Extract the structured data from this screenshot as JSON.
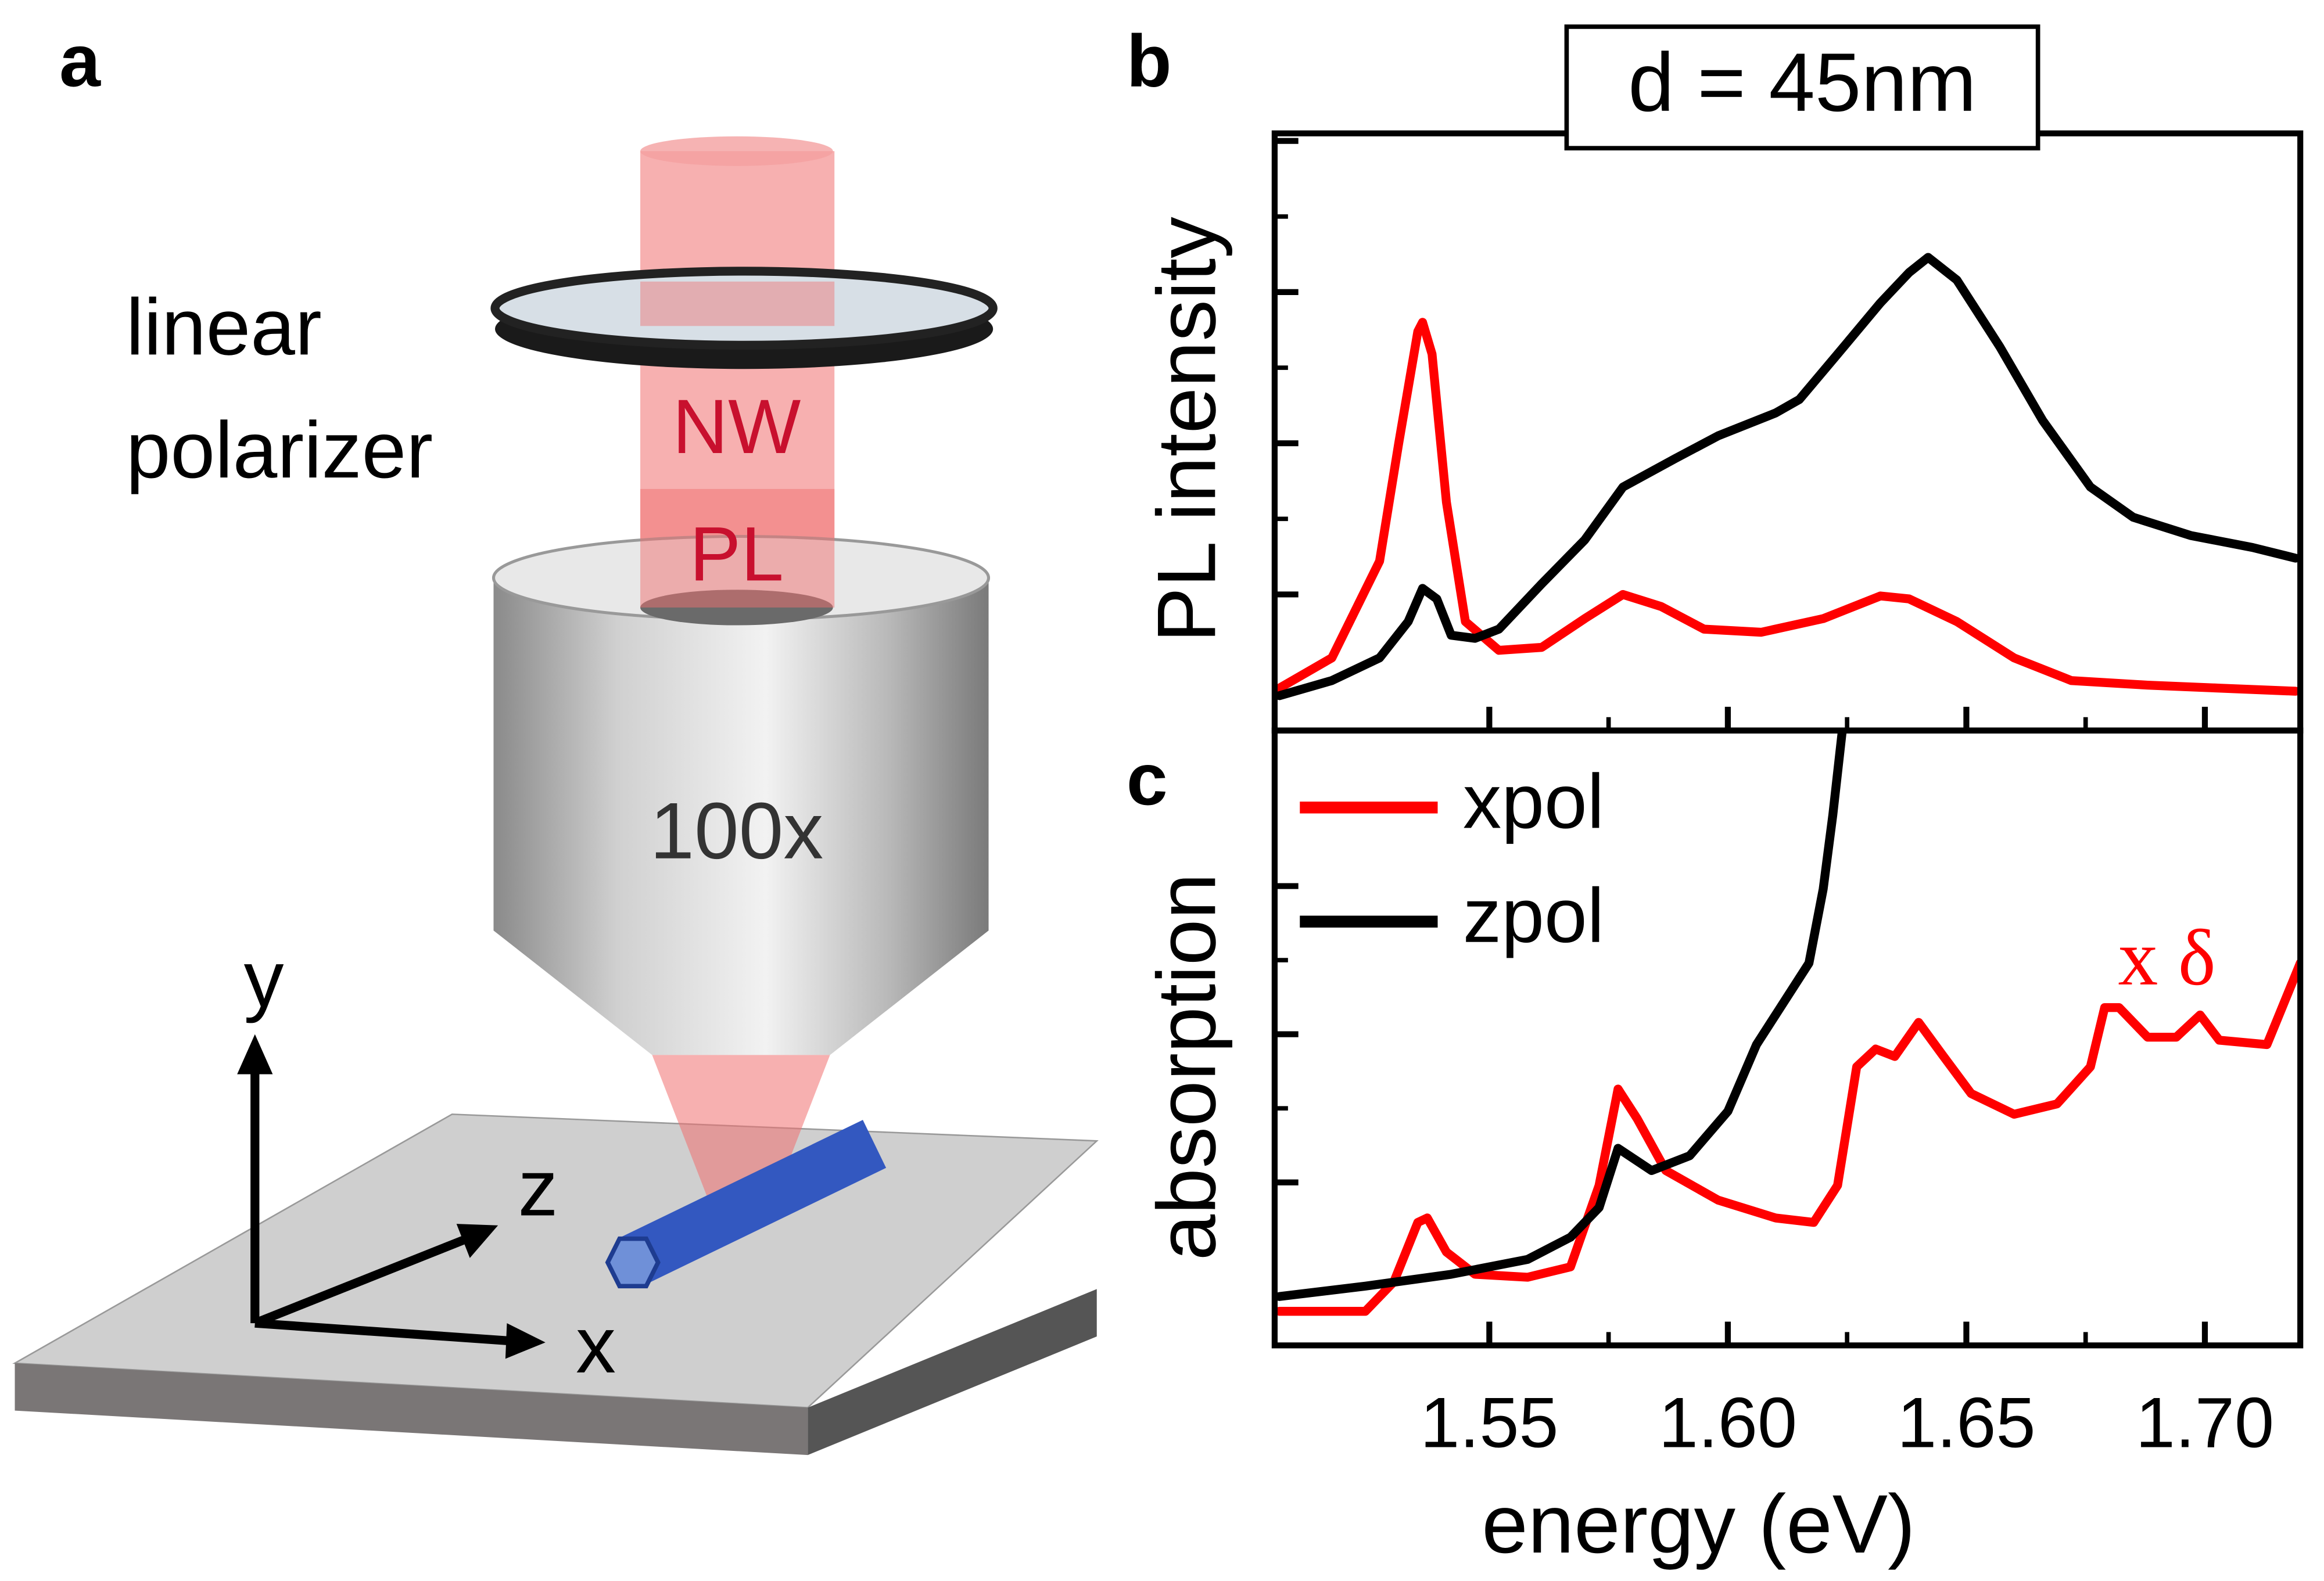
{
  "diagram": {
    "panel_label": "a",
    "polarizer_label": [
      "linear",
      "polarizer"
    ],
    "beam_label": [
      "NW",
      "PL"
    ],
    "objective_label": "100x",
    "axes": {
      "y": "y",
      "z": "z",
      "x": "x"
    }
  },
  "chart_data": [
    {
      "type": "line",
      "panel_label": "b",
      "title": "d = 45nm",
      "y_label": "PL intensity",
      "xlim": [
        1.505,
        1.72
      ],
      "xticks": [
        1.55,
        {
          "value": 1.6,
          "label": "1.60"
        },
        1.65,
        {
          "value": 1.7,
          "label": "1.70"
        }
      ],
      "ylim": [
        -0.9,
        3.05
      ],
      "yticks": [
        0,
        1,
        2,
        3
      ],
      "series": [
        {
          "color": "#ff0000",
          "x": [
            1.506,
            1.517,
            1.527,
            1.531,
            1.535,
            1.536,
            1.538,
            1.541,
            1.545,
            1.552,
            1.561,
            1.57,
            1.578,
            1.586,
            1.595,
            1.607,
            1.62,
            1.632,
            1.638,
            1.648,
            1.66,
            1.672,
            1.688,
            1.703,
            1.719
          ],
          "values": [
            -0.62,
            -0.42,
            0.22,
            1.0,
            1.74,
            1.8,
            1.59,
            0.61,
            -0.18,
            -0.37,
            -0.35,
            -0.16,
            0,
            -0.08,
            -0.23,
            -0.25,
            -0.16,
            -0.01,
            -0.03,
            -0.18,
            -0.42,
            -0.57,
            -0.6,
            -0.62,
            -0.64
          ]
        },
        {
          "color": "#000000",
          "x": [
            1.506,
            1.517,
            1.527,
            1.533,
            1.536,
            1.539,
            1.542,
            1.547,
            1.552,
            1.561,
            1.57,
            1.578,
            1.589,
            1.598,
            1.61,
            1.615,
            1.623,
            1.632,
            1.638,
            1.642,
            1.648,
            1.657,
            1.666,
            1.676,
            1.685,
            1.697,
            1.71,
            1.719
          ],
          "values": [
            -0.67,
            -0.57,
            -0.42,
            -0.18,
            0.04,
            -0.03,
            -0.27,
            -0.29,
            -0.23,
            0.07,
            0.36,
            0.71,
            0.9,
            1.05,
            1.2,
            1.29,
            1.59,
            1.93,
            2.13,
            2.23,
            2.08,
            1.64,
            1.15,
            0.71,
            0.51,
            0.39,
            0.31,
            0.24
          ]
        }
      ]
    },
    {
      "type": "line",
      "panel_label": "c",
      "y_label": "absorption",
      "x_label": "energy (eV)",
      "xlim": [
        1.505,
        1.72
      ],
      "xticks": [
        1.55,
        {
          "value": 1.6,
          "label": "1.60"
        },
        1.65,
        {
          "value": 1.7,
          "label": "1.70"
        }
      ],
      "ylim": [
        -1.1,
        3.05
      ],
      "yticks": [
        0,
        1,
        2
      ],
      "legend": "upper left",
      "annotation": {
        "text": "x δ",
        "color": "#ff0000"
      },
      "series": [
        {
          "name": "xpol",
          "color": "#ff0000",
          "x": [
            1.506,
            1.524,
            1.53,
            1.535,
            1.537,
            1.541,
            1.547,
            1.558,
            1.567,
            1.573,
            1.577,
            1.581,
            1.587,
            1.598,
            1.61,
            1.618,
            1.623,
            1.627,
            1.631,
            1.635,
            1.64,
            1.645,
            1.651,
            1.66,
            1.669,
            1.676,
            1.679,
            1.682,
            1.688,
            1.694,
            1.699,
            1.703,
            1.713,
            1.72
          ],
          "values": [
            -0.87,
            -0.87,
            -0.67,
            -0.27,
            -0.24,
            -0.47,
            -0.62,
            -0.64,
            -0.57,
            -0.02,
            0.63,
            0.43,
            0.08,
            -0.12,
            -0.24,
            -0.27,
            -0.02,
            0.78,
            0.9,
            0.85,
            1.08,
            0.86,
            0.6,
            0.46,
            0.53,
            0.78,
            1.18,
            1.18,
            0.98,
            0.98,
            1.13,
            0.96,
            0.93,
            1.48
          ]
        },
        {
          "name": "zpol",
          "color": "#000000",
          "x": [
            1.506,
            1.524,
            1.542,
            1.558,
            1.567,
            1.573,
            1.577,
            1.584,
            1.592,
            1.6,
            1.606,
            1.612,
            1.617,
            1.62,
            1.622,
            1.624
          ],
          "values": [
            -0.77,
            -0.7,
            -0.62,
            -0.52,
            -0.37,
            -0.17,
            0.23,
            0.08,
            0.18,
            0.48,
            0.93,
            1.23,
            1.48,
            1.98,
            2.48,
            3.05
          ]
        }
      ]
    }
  ]
}
